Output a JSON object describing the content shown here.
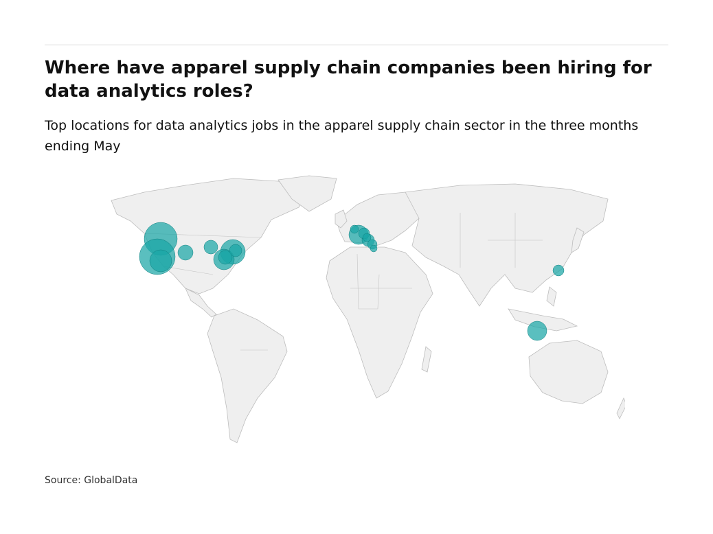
{
  "header": {
    "title": "Where have apparel supply chain companies been hiring for data analytics roles?",
    "subtitle": "Top locations for data analytics jobs in the apparel supply chain sector in the three months ending May"
  },
  "footer": {
    "source": "Source: GlobalData"
  },
  "colors": {
    "bubble": "#1aa6a6",
    "land": "#efefef",
    "border": "#b9b9b9",
    "overlap": "#0b3d3d"
  },
  "map": {
    "projection": "equirectangular",
    "bubble_opacity": 0.72
  }
}
